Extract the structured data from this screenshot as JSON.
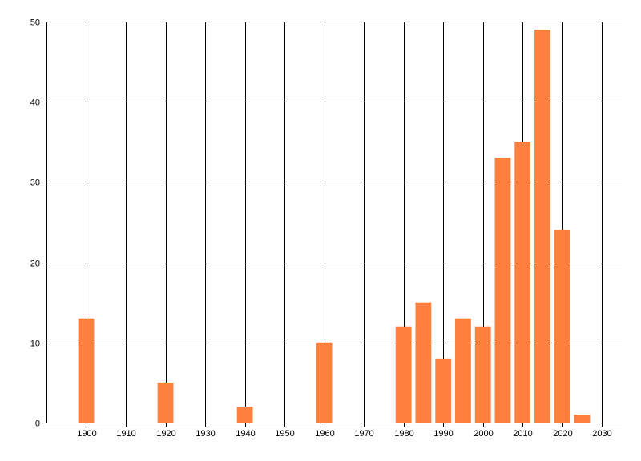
{
  "chart_data": {
    "type": "bar",
    "title": "",
    "xlabel": "",
    "ylabel": "",
    "x": [
      1900,
      1920,
      1940,
      1960,
      1980,
      1985,
      1990,
      1995,
      2000,
      2005,
      2010,
      2015,
      2020,
      2025
    ],
    "values": [
      13,
      5,
      2,
      10,
      12,
      15,
      8,
      13,
      12,
      33,
      35,
      49,
      24,
      1
    ],
    "xlim": [
      1890,
      2035
    ],
    "ylim": [
      0,
      50
    ],
    "xticks": [
      "1900",
      "1910",
      "1920",
      "1930",
      "1940",
      "1950",
      "1960",
      "1970",
      "1980",
      "1990",
      "2000",
      "2010",
      "2020",
      "2030"
    ],
    "yticks": [
      "0",
      "10",
      "20",
      "30",
      "40",
      "50"
    ],
    "grid": true,
    "bar_color": "#ff7f3f",
    "grid_color": "#000000"
  }
}
